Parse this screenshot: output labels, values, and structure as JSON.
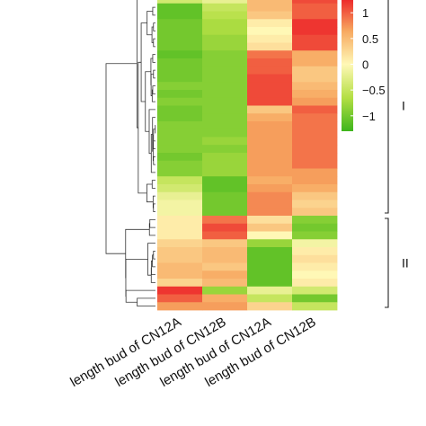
{
  "chart_data": {
    "type": "heatmap",
    "columns": [
      "length bud of CN12A",
      "length bud of CN12B",
      "length bud of CN12A",
      "length bud of CN12B"
    ],
    "colorbar": {
      "ticks": [
        1,
        0.5,
        0,
        -0.5,
        -1
      ],
      "tick_labels": [
        "1",
        "0.5",
        "0",
        "−0.5",
        "−1"
      ],
      "range": [
        -1.3,
        1.3
      ],
      "colors": [
        "#3db51c",
        "#b4df44",
        "#fff8b6",
        "#f7a860",
        "#ec2027"
      ]
    },
    "clusters": [
      {
        "label": "I",
        "rows_from": 0,
        "rows_to": 27
      },
      {
        "label": "II",
        "rows_from": 28,
        "rows_to": 39
      }
    ],
    "values": [
      [
        -0.4,
        -0.2,
        0.5,
        1.1
      ],
      [
        -1.1,
        -0.5,
        0.5,
        1.0
      ],
      [
        -1.1,
        -0.6,
        0.4,
        1.0
      ],
      [
        -1.0,
        -0.7,
        0.1,
        1.2
      ],
      [
        -1.0,
        -0.7,
        0.0,
        1.2
      ],
      [
        -1.0,
        -0.8,
        0.1,
        1.1
      ],
      [
        -1.0,
        -0.8,
        0.2,
        1.1
      ],
      [
        -1.1,
        -0.9,
        0.9,
        0.6
      ],
      [
        -1.0,
        -0.9,
        1.0,
        0.6
      ],
      [
        -1.0,
        -0.9,
        1.0,
        0.4
      ],
      [
        -1.0,
        -0.9,
        1.1,
        0.4
      ],
      [
        -0.9,
        -0.9,
        1.1,
        0.5
      ],
      [
        -1.0,
        -0.9,
        1.1,
        0.6
      ],
      [
        -0.9,
        -0.9,
        1.1,
        0.7
      ],
      [
        -1.0,
        -0.9,
        0.4,
        1.0
      ],
      [
        -1.0,
        -0.9,
        0.6,
        0.9
      ],
      [
        -0.9,
        -0.9,
        0.7,
        0.9
      ],
      [
        -0.9,
        -0.9,
        0.7,
        0.9
      ],
      [
        -0.9,
        -0.8,
        0.7,
        0.9
      ],
      [
        -0.9,
        -0.9,
        0.7,
        0.9
      ],
      [
        -1.0,
        -0.8,
        0.7,
        0.9
      ],
      [
        -0.9,
        -0.8,
        0.7,
        0.9
      ],
      [
        -0.9,
        -0.8,
        0.7,
        0.7
      ],
      [
        -0.5,
        -1.1,
        0.6,
        0.7
      ],
      [
        -0.4,
        -1.1,
        0.7,
        0.6
      ],
      [
        -0.2,
        -1.0,
        0.8,
        0.4
      ],
      [
        -0.1,
        -1.0,
        0.8,
        0.3
      ],
      [
        -0.1,
        -1.0,
        0.8,
        0.4
      ],
      [
        0.1,
        0.9,
        0.2,
        -0.9
      ],
      [
        0.1,
        1.1,
        0.4,
        -1.0
      ],
      [
        0.1,
        1.0,
        0.0,
        -0.9
      ],
      [
        0.3,
        0.4,
        -0.8,
        -0.1
      ],
      [
        0.4,
        0.5,
        -1.1,
        0.1
      ],
      [
        0.4,
        0.5,
        -1.1,
        0.2
      ],
      [
        0.5,
        0.4,
        -1.1,
        0.1
      ],
      [
        0.5,
        0.6,
        -1.1,
        0.0
      ],
      [
        0.3,
        0.5,
        -1.1,
        0.1
      ],
      [
        1.2,
        -0.8,
        -0.2,
        -0.4
      ],
      [
        1.0,
        0.6,
        -0.5,
        -1.0
      ],
      [
        0.7,
        0.7,
        0.3,
        -0.5
      ]
    ]
  }
}
